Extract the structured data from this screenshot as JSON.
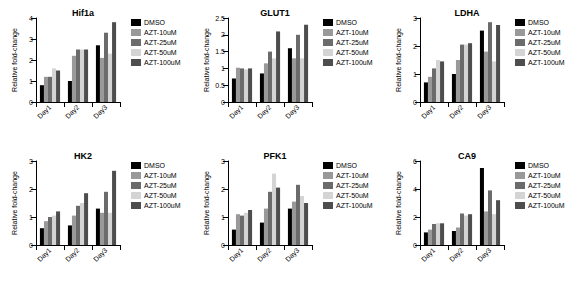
{
  "chart_data": [
    {
      "type": "bar",
      "title": "Hif1a",
      "ylabel": "Relative fold-change",
      "categories": [
        "Day1",
        "Day2",
        "Day3"
      ],
      "series": [
        {
          "name": "DMSO",
          "color": "#000000",
          "values": [
            0.8,
            1.0,
            2.7
          ]
        },
        {
          "name": "AZT-10uM",
          "color": "#999999",
          "values": [
            1.2,
            2.2,
            2.1
          ]
        },
        {
          "name": "AZT-25uM",
          "color": "#6b6b6b",
          "values": [
            1.2,
            2.5,
            3.3
          ]
        },
        {
          "name": "AZT-50uM",
          "color": "#d4d4d4",
          "values": [
            1.6,
            2.5,
            2.3
          ]
        },
        {
          "name": "AZT-100uM",
          "color": "#4d4d4d",
          "values": [
            1.5,
            2.5,
            3.8
          ]
        }
      ],
      "ylim": [
        0,
        4
      ],
      "yticks": [
        0,
        1,
        2,
        3,
        4
      ],
      "grid": false,
      "legend": "right"
    },
    {
      "type": "bar",
      "title": "GLUT1",
      "ylabel": "Relative fold-change",
      "categories": [
        "Day1",
        "Day2",
        "Day3"
      ],
      "series": [
        {
          "name": "DMSO",
          "color": "#000000",
          "values": [
            0.7,
            0.85,
            1.6
          ]
        },
        {
          "name": "AZT-10uM",
          "color": "#999999",
          "values": [
            1.02,
            1.15,
            1.3
          ]
        },
        {
          "name": "AZT-25uM",
          "color": "#6b6b6b",
          "values": [
            1.0,
            1.5,
            2.0
          ]
        },
        {
          "name": "AZT-50uM",
          "color": "#d4d4d4",
          "values": [
            0.97,
            1.3,
            1.3
          ]
        },
        {
          "name": "AZT-100uM",
          "color": "#4d4d4d",
          "values": [
            1.0,
            2.1,
            2.3
          ]
        }
      ],
      "ylim": [
        0,
        2.5
      ],
      "yticks": [
        0,
        0.5,
        1,
        1.5,
        2,
        2.5
      ],
      "grid": false,
      "legend": "right"
    },
    {
      "type": "bar",
      "title": "LDHA",
      "ylabel": "Relative fold-change",
      "categories": [
        "Day1",
        "Day2",
        "Day3"
      ],
      "series": [
        {
          "name": "DMSO",
          "color": "#000000",
          "values": [
            0.7,
            1.0,
            2.55
          ]
        },
        {
          "name": "AZT-10uM",
          "color": "#999999",
          "values": [
            0.9,
            1.5,
            1.8
          ]
        },
        {
          "name": "AZT-25uM",
          "color": "#6b6b6b",
          "values": [
            1.2,
            2.05,
            2.85
          ]
        },
        {
          "name": "AZT-50uM",
          "color": "#d4d4d4",
          "values": [
            1.5,
            2.05,
            1.45
          ]
        },
        {
          "name": "AZT-100uM",
          "color": "#4d4d4d",
          "values": [
            1.45,
            2.1,
            2.75
          ]
        }
      ],
      "ylim": [
        0,
        3
      ],
      "yticks": [
        0,
        1,
        2,
        3
      ],
      "grid": false,
      "legend": "right"
    },
    {
      "type": "bar",
      "title": "HK2",
      "ylabel": "Relative fold-change",
      "categories": [
        "Day1",
        "Day2",
        "Day3"
      ],
      "series": [
        {
          "name": "DMSO",
          "color": "#000000",
          "values": [
            0.6,
            0.7,
            1.3
          ]
        },
        {
          "name": "AZT-10uM",
          "color": "#999999",
          "values": [
            0.85,
            1.05,
            1.15
          ]
        },
        {
          "name": "AZT-25uM",
          "color": "#6b6b6b",
          "values": [
            1.0,
            1.4,
            1.9
          ]
        },
        {
          "name": "AZT-50uM",
          "color": "#d4d4d4",
          "values": [
            1.05,
            1.5,
            1.15
          ]
        },
        {
          "name": "AZT-100uM",
          "color": "#4d4d4d",
          "values": [
            1.2,
            1.85,
            2.65
          ]
        }
      ],
      "ylim": [
        0,
        3
      ],
      "yticks": [
        0,
        1,
        2,
        3
      ],
      "grid": false,
      "legend": "right"
    },
    {
      "type": "bar",
      "title": "PFK1",
      "ylabel": "Relative fold-change",
      "categories": [
        "Day1",
        "Day2",
        "Day3"
      ],
      "series": [
        {
          "name": "DMSO",
          "color": "#000000",
          "values": [
            0.55,
            0.8,
            1.3
          ]
        },
        {
          "name": "AZT-10uM",
          "color": "#999999",
          "values": [
            1.1,
            1.3,
            1.55
          ]
        },
        {
          "name": "AZT-25uM",
          "color": "#6b6b6b",
          "values": [
            1.05,
            1.9,
            2.15
          ]
        },
        {
          "name": "AZT-50uM",
          "color": "#d4d4d4",
          "values": [
            1.15,
            2.55,
            1.75
          ]
        },
        {
          "name": "AZT-100uM",
          "color": "#4d4d4d",
          "values": [
            1.25,
            2.05,
            1.5
          ]
        }
      ],
      "ylim": [
        0,
        3
      ],
      "yticks": [
        0,
        1,
        2,
        3
      ],
      "grid": false,
      "legend": "right"
    },
    {
      "type": "bar",
      "title": "CA9",
      "ylabel": "Relative fold-change",
      "categories": [
        "Day1",
        "Day2",
        "Day3"
      ],
      "series": [
        {
          "name": "DMSO",
          "color": "#000000",
          "values": [
            0.9,
            1.0,
            5.5
          ]
        },
        {
          "name": "AZT-10uM",
          "color": "#999999",
          "values": [
            1.1,
            1.25,
            2.4
          ]
        },
        {
          "name": "AZT-25uM",
          "color": "#6b6b6b",
          "values": [
            1.5,
            2.25,
            3.9
          ]
        },
        {
          "name": "AZT-50uM",
          "color": "#d4d4d4",
          "values": [
            1.55,
            2.1,
            2.2
          ]
        },
        {
          "name": "AZT-100uM",
          "color": "#4d4d4d",
          "values": [
            1.55,
            2.2,
            3.2
          ]
        }
      ],
      "ylim": [
        0,
        6
      ],
      "yticks": [
        0,
        2,
        4,
        6
      ],
      "grid": false,
      "legend": "right"
    }
  ]
}
